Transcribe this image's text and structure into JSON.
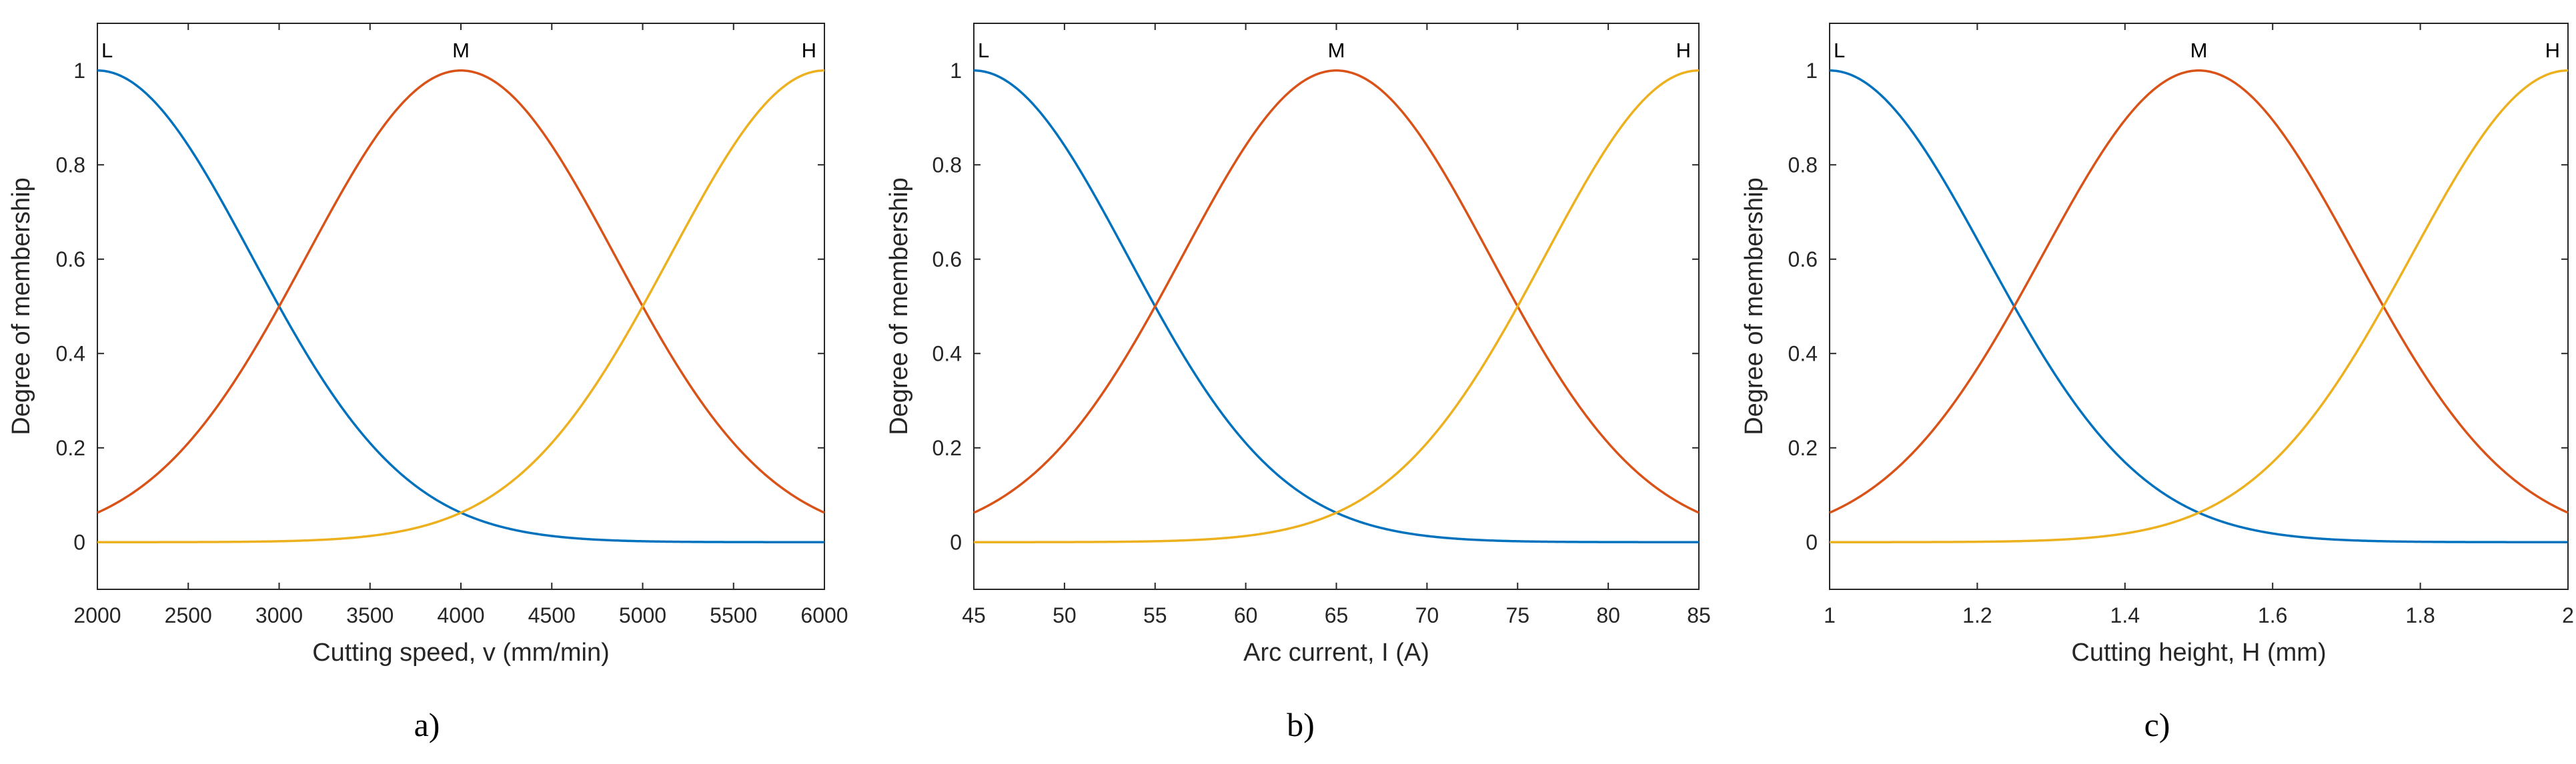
{
  "colors": {
    "L": "#0072BD",
    "M": "#D95319",
    "H": "#EDB120",
    "axis": "#262626"
  },
  "chart_data": [
    {
      "type": "line",
      "caption": "a)",
      "xlabel": "Cutting speed, v (mm/min)",
      "ylabel": "Degree of membership",
      "xlim": [
        2000,
        6000
      ],
      "ylim": [
        -0.1,
        1.1
      ],
      "xticks": [
        2000,
        2500,
        3000,
        3500,
        4000,
        4500,
        5000,
        5500,
        6000
      ],
      "xtick_labels": [
        "2000",
        "2500",
        "3000",
        "3500",
        "4000",
        "4500",
        "5000",
        "5500",
        "6000"
      ],
      "yticks": [
        0,
        0.2,
        0.4,
        0.6,
        0.8,
        1
      ],
      "ytick_labels": [
        "0",
        "0.2",
        "0.4",
        "0.6",
        "0.8",
        "1"
      ],
      "series": [
        {
          "name": "L",
          "shape": "gaussian",
          "center": 2000,
          "sigma": 849.3
        },
        {
          "name": "M",
          "shape": "gaussian",
          "center": 4000,
          "sigma": 849.3
        },
        {
          "name": "H",
          "shape": "gaussian",
          "center": 6000,
          "sigma": 849.3
        }
      ]
    },
    {
      "type": "line",
      "caption": "b)",
      "xlabel": "Arc current, I (A)",
      "ylabel": "Degree of membership",
      "xlim": [
        45,
        85
      ],
      "ylim": [
        -0.1,
        1.1
      ],
      "xticks": [
        45,
        50,
        55,
        60,
        65,
        70,
        75,
        80,
        85
      ],
      "xtick_labels": [
        "45",
        "50",
        "55",
        "60",
        "65",
        "70",
        "75",
        "80",
        "85"
      ],
      "yticks": [
        0,
        0.2,
        0.4,
        0.6,
        0.8,
        1
      ],
      "ytick_labels": [
        "0",
        "0.2",
        "0.4",
        "0.6",
        "0.8",
        "1"
      ],
      "series": [
        {
          "name": "L",
          "shape": "gaussian",
          "center": 45,
          "sigma": 8.493
        },
        {
          "name": "M",
          "shape": "gaussian",
          "center": 65,
          "sigma": 8.493
        },
        {
          "name": "H",
          "shape": "gaussian",
          "center": 85,
          "sigma": 8.493
        }
      ]
    },
    {
      "type": "line",
      "caption": "c)",
      "xlabel": "Cutting height, H (mm)",
      "ylabel": "Degree of membership",
      "xlim": [
        1,
        2
      ],
      "ylim": [
        -0.1,
        1.1
      ],
      "xticks": [
        1,
        1.2,
        1.4,
        1.6,
        1.8,
        2
      ],
      "xtick_labels": [
        "1",
        "1.2",
        "1.4",
        "1.6",
        "1.8",
        "2"
      ],
      "yticks": [
        0,
        0.2,
        0.4,
        0.6,
        0.8,
        1
      ],
      "ytick_labels": [
        "0",
        "0.2",
        "0.4",
        "0.6",
        "0.8",
        "1"
      ],
      "series": [
        {
          "name": "L",
          "shape": "gaussian",
          "center": 1,
          "sigma": 0.2123
        },
        {
          "name": "M",
          "shape": "gaussian",
          "center": 1.5,
          "sigma": 0.2123
        },
        {
          "name": "H",
          "shape": "gaussian",
          "center": 2,
          "sigma": 0.2123
        }
      ]
    }
  ]
}
